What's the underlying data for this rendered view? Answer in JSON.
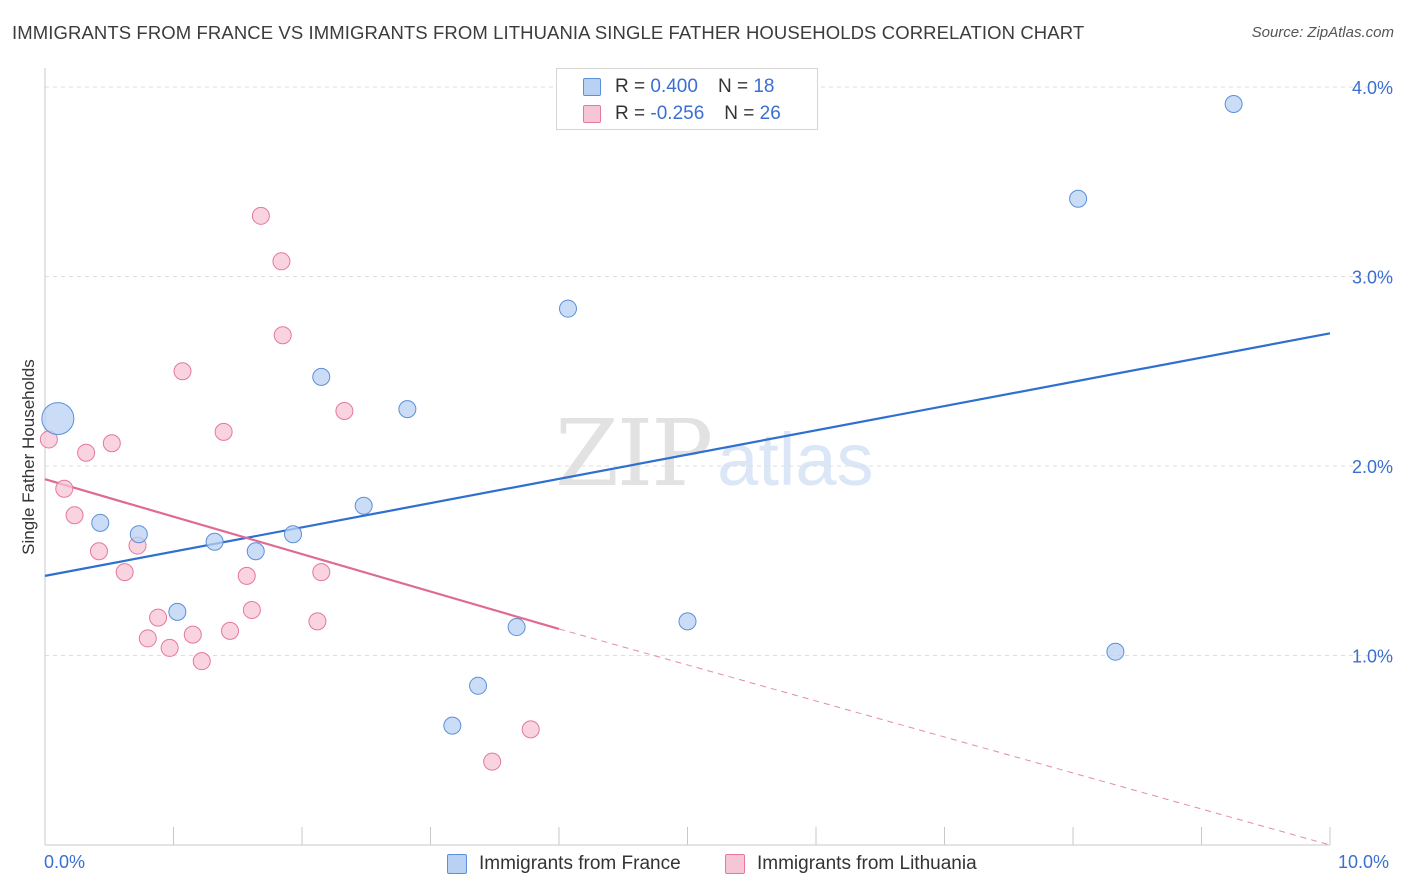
{
  "title": "IMMIGRANTS FROM FRANCE VS IMMIGRANTS FROM LITHUANIA SINGLE FATHER HOUSEHOLDS CORRELATION CHART",
  "source": {
    "label": "Source:",
    "value": "ZipAtlas.com"
  },
  "watermark": {
    "zip": "ZIP",
    "atlas": "atlas"
  },
  "colors": {
    "france": "#5b8fd9",
    "france_fill": "#b9d1f3",
    "lithuania": "#e5789d",
    "lithuania_fill": "#f7c6d5",
    "tick_text": "#3a6fd1"
  },
  "legend": {
    "france": {
      "r_label": "R = ",
      "r_value": "0.400",
      "n_label": "N = ",
      "n_value": "18"
    },
    "lithuania": {
      "r_label": "R = ",
      "r_value": "-0.256",
      "n_label": "N = ",
      "n_value": "26"
    }
  },
  "bottom_legend": {
    "france": "Immigrants from France",
    "lithuania": "Immigrants from Lithuania"
  },
  "chart_data": {
    "type": "scatter",
    "title": "IMMIGRANTS FROM FRANCE VS IMMIGRANTS FROM LITHUANIA SINGLE FATHER HOUSEHOLDS CORRELATION CHART",
    "xlabel": "",
    "ylabel": "Single Father Households",
    "xlim": [
      0,
      10
    ],
    "ylim": [
      0,
      4.1
    ],
    "x_tick_labels": [
      "0.0%",
      "10.0%"
    ],
    "y_ticks": [
      1,
      2,
      3,
      4
    ],
    "y_tick_labels": [
      "1.0%",
      "2.0%",
      "3.0%",
      "4.0%"
    ],
    "grid": true,
    "series": [
      {
        "name": "Immigrants from France",
        "r": 0.4,
        "n": 18,
        "points": [
          {
            "x": 0.1,
            "y": 2.25,
            "size": "large"
          },
          {
            "x": 0.43,
            "y": 1.7
          },
          {
            "x": 0.73,
            "y": 1.64
          },
          {
            "x": 1.03,
            "y": 1.23
          },
          {
            "x": 1.32,
            "y": 1.6
          },
          {
            "x": 1.64,
            "y": 1.55
          },
          {
            "x": 1.93,
            "y": 1.64
          },
          {
            "x": 2.15,
            "y": 2.47
          },
          {
            "x": 2.48,
            "y": 1.79
          },
          {
            "x": 2.82,
            "y": 2.3
          },
          {
            "x": 3.17,
            "y": 0.63
          },
          {
            "x": 3.37,
            "y": 0.84
          },
          {
            "x": 3.67,
            "y": 1.15
          },
          {
            "x": 4.07,
            "y": 2.83
          },
          {
            "x": 5.0,
            "y": 1.18
          },
          {
            "x": 8.04,
            "y": 3.41
          },
          {
            "x": 8.33,
            "y": 1.02
          },
          {
            "x": 9.25,
            "y": 3.91
          }
        ],
        "trend": {
          "x0": 0.0,
          "y0": 1.42,
          "x1": 10.0,
          "y1": 2.7
        }
      },
      {
        "name": "Immigrants from Lithuania",
        "r": -0.256,
        "n": 26,
        "points": [
          {
            "x": 0.03,
            "y": 2.14
          },
          {
            "x": 0.15,
            "y": 1.88
          },
          {
            "x": 0.23,
            "y": 1.74
          },
          {
            "x": 0.32,
            "y": 2.07
          },
          {
            "x": 0.42,
            "y": 1.55
          },
          {
            "x": 0.52,
            "y": 2.12
          },
          {
            "x": 0.62,
            "y": 1.44
          },
          {
            "x": 0.72,
            "y": 1.58
          },
          {
            "x": 0.8,
            "y": 1.09
          },
          {
            "x": 0.88,
            "y": 1.2
          },
          {
            "x": 0.97,
            "y": 1.04
          },
          {
            "x": 1.07,
            "y": 2.5
          },
          {
            "x": 1.15,
            "y": 1.11
          },
          {
            "x": 1.22,
            "y": 0.97
          },
          {
            "x": 1.39,
            "y": 2.18
          },
          {
            "x": 1.44,
            "y": 1.13
          },
          {
            "x": 1.57,
            "y": 1.42
          },
          {
            "x": 1.61,
            "y": 1.24
          },
          {
            "x": 1.68,
            "y": 3.32
          },
          {
            "x": 1.84,
            "y": 3.08
          },
          {
            "x": 1.85,
            "y": 2.69
          },
          {
            "x": 2.12,
            "y": 1.18
          },
          {
            "x": 2.15,
            "y": 1.44
          },
          {
            "x": 2.33,
            "y": 2.29
          },
          {
            "x": 3.48,
            "y": 0.44
          },
          {
            "x": 3.78,
            "y": 0.61
          }
        ],
        "trend": {
          "x0": 0.0,
          "y0": 1.93,
          "x1": 4.0,
          "y1": 1.14,
          "dashed_to_x": 10.0,
          "dashed_to_y": 0.0
        }
      }
    ]
  }
}
